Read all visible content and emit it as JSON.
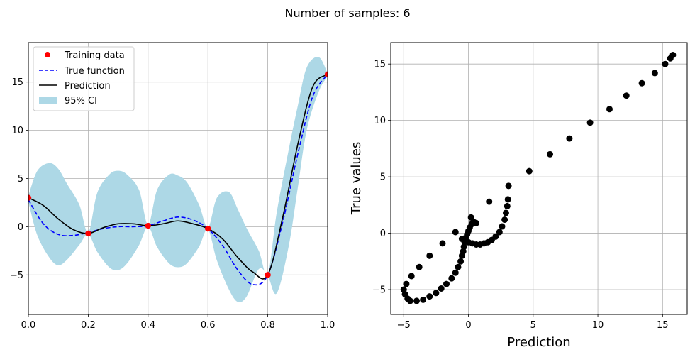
{
  "suptitle": "Number of samples: 6",
  "colors": {
    "training": "#ff0000",
    "true_fn": "#0000ff",
    "prediction": "#000000",
    "ci": "#add8e6",
    "grid": "#b0b0b0",
    "scatter": "#000000"
  },
  "chart_data": [
    {
      "type": "line",
      "title": "",
      "xlabel": "",
      "ylabel": "",
      "xlim": [
        0,
        1
      ],
      "ylim": [
        -9.1,
        19.1
      ],
      "xticks": [
        0.0,
        0.2,
        0.4,
        0.6,
        0.8,
        1.0
      ],
      "xtick_labels": [
        "0.0",
        "0.2",
        "0.4",
        "0.6",
        "0.8",
        "1.0"
      ],
      "yticks": [
        -5,
        0,
        5,
        10,
        15
      ],
      "ytick_labels": [
        "−5",
        "0",
        "5",
        "10",
        "15"
      ],
      "grid": true,
      "legend_position": "top-left",
      "legend": [
        {
          "label": "Training data",
          "kind": "marker"
        },
        {
          "label": "True function",
          "kind": "dashed"
        },
        {
          "label": "Prediction",
          "kind": "line"
        },
        {
          "label": "95% CI",
          "kind": "patch"
        }
      ],
      "training_data": {
        "x": [
          0.0,
          0.2,
          0.4,
          0.6,
          0.8,
          1.0
        ],
        "y": [
          3.0,
          -0.7,
          0.1,
          -0.2,
          -5.0,
          15.8
        ]
      },
      "true_function": {
        "x": [
          0.0,
          0.05,
          0.1,
          0.15,
          0.2,
          0.25,
          0.3,
          0.35,
          0.4,
          0.45,
          0.5,
          0.55,
          0.6,
          0.65,
          0.7,
          0.75,
          0.8,
          0.85,
          0.9,
          0.95,
          1.0
        ],
        "y": [
          2.8,
          0.3,
          -0.8,
          -0.9,
          -0.6,
          -0.2,
          0.0,
          0.0,
          0.1,
          0.6,
          1.0,
          0.7,
          -0.2,
          -2.0,
          -4.5,
          -6.0,
          -5.0,
          0.5,
          7.5,
          13.5,
          15.8
        ]
      },
      "prediction": {
        "x": [
          0.0,
          0.05,
          0.1,
          0.15,
          0.2,
          0.25,
          0.3,
          0.35,
          0.4,
          0.45,
          0.5,
          0.55,
          0.6,
          0.65,
          0.7,
          0.75,
          0.8,
          0.85,
          0.9,
          0.95,
          1.0
        ],
        "y": [
          3.0,
          2.2,
          0.8,
          -0.3,
          -0.7,
          -0.1,
          0.3,
          0.3,
          0.1,
          0.3,
          0.6,
          0.3,
          -0.2,
          -1.3,
          -3.2,
          -4.7,
          -5.0,
          1.0,
          8.5,
          14.5,
          15.8
        ]
      },
      "ci_95": {
        "x": [
          0.0,
          0.03,
          0.07,
          0.1,
          0.13,
          0.17,
          0.2,
          0.23,
          0.27,
          0.3,
          0.33,
          0.37,
          0.4,
          0.43,
          0.47,
          0.5,
          0.53,
          0.57,
          0.6,
          0.63,
          0.67,
          0.7,
          0.73,
          0.77,
          0.8,
          0.83,
          0.87,
          0.9,
          0.93,
          0.97,
          1.0
        ],
        "lower": [
          2.6,
          -0.9,
          -3.2,
          -4.0,
          -3.4,
          -1.9,
          -0.8,
          -2.6,
          -4.2,
          -4.5,
          -3.8,
          -1.9,
          0.0,
          -2.1,
          -3.8,
          -4.2,
          -3.8,
          -2.1,
          -0.3,
          -3.5,
          -6.5,
          -7.8,
          -7.2,
          -4.4,
          -5.1,
          -6.9,
          -2.0,
          4.0,
          10.0,
          14.0,
          15.6
        ],
        "upper": [
          3.2,
          5.8,
          6.6,
          6.0,
          4.4,
          2.3,
          -0.6,
          3.5,
          5.4,
          5.8,
          5.4,
          3.8,
          0.2,
          3.8,
          5.4,
          5.3,
          4.6,
          2.3,
          -0.1,
          3.0,
          3.6,
          1.8,
          -0.2,
          -2.5,
          -4.9,
          1.5,
          8.0,
          12.5,
          16.5,
          17.6,
          15.9
        ]
      }
    },
    {
      "type": "scatter",
      "title": "",
      "xlabel": "Prediction",
      "ylabel": "True values",
      "xlim": [
        -6.0,
        16.9
      ],
      "ylim": [
        -7.2,
        16.9
      ],
      "xticks": [
        -5,
        0,
        5,
        10,
        15
      ],
      "xtick_labels": [
        "−5",
        "0",
        "5",
        "10",
        "15"
      ],
      "yticks": [
        -5,
        0,
        5,
        10,
        15
      ],
      "ytick_labels": [
        "−5",
        "0",
        "5",
        "10",
        "15"
      ],
      "grid": true,
      "points": [
        [
          -5.0,
          -5.0
        ],
        [
          -4.8,
          -4.5
        ],
        [
          -4.4,
          -3.8
        ],
        [
          -3.8,
          -3.0
        ],
        [
          -3.0,
          -2.0
        ],
        [
          -2.0,
          -0.9
        ],
        [
          -1.0,
          0.1
        ],
        [
          0.2,
          1.4
        ],
        [
          0.5,
          0.9
        ],
        [
          -4.9,
          -5.4
        ],
        [
          -4.7,
          -5.8
        ],
        [
          -4.5,
          -6.0
        ],
        [
          -4.0,
          -6.0
        ],
        [
          -3.5,
          -5.9
        ],
        [
          -3.0,
          -5.6
        ],
        [
          -2.5,
          -5.3
        ],
        [
          -2.1,
          -4.9
        ],
        [
          -1.7,
          -4.5
        ],
        [
          -1.3,
          -4.0
        ],
        [
          -1.0,
          -3.5
        ],
        [
          -0.8,
          -3.0
        ],
        [
          -0.6,
          -2.5
        ],
        [
          -0.5,
          -2.0
        ],
        [
          -0.4,
          -1.6
        ],
        [
          -0.35,
          -1.2
        ],
        [
          -0.3,
          -0.8
        ],
        [
          -0.2,
          -0.4
        ],
        [
          -0.1,
          -0.1
        ],
        [
          0.0,
          0.2
        ],
        [
          0.1,
          0.5
        ],
        [
          0.25,
          0.8
        ],
        [
          0.4,
          1.0
        ],
        [
          0.6,
          0.9
        ],
        [
          -0.5,
          -0.5
        ],
        [
          -0.3,
          -0.7
        ],
        [
          0.0,
          -0.8
        ],
        [
          0.3,
          -0.9
        ],
        [
          0.6,
          -1.0
        ],
        [
          0.9,
          -1.0
        ],
        [
          1.2,
          -0.9
        ],
        [
          1.5,
          -0.8
        ],
        [
          1.8,
          -0.6
        ],
        [
          2.1,
          -0.3
        ],
        [
          2.4,
          0.1
        ],
        [
          2.6,
          0.6
        ],
        [
          2.8,
          1.2
        ],
        [
          2.9,
          1.8
        ],
        [
          3.0,
          2.4
        ],
        [
          3.05,
          3.0
        ],
        [
          3.1,
          4.2
        ],
        [
          1.6,
          2.8
        ],
        [
          4.7,
          5.5
        ],
        [
          6.3,
          7.0
        ],
        [
          7.8,
          8.4
        ],
        [
          9.4,
          9.8
        ],
        [
          10.9,
          11.0
        ],
        [
          12.2,
          12.2
        ],
        [
          13.4,
          13.3
        ],
        [
          14.4,
          14.2
        ],
        [
          15.2,
          15.0
        ],
        [
          15.6,
          15.5
        ],
        [
          15.8,
          15.8
        ]
      ]
    }
  ]
}
